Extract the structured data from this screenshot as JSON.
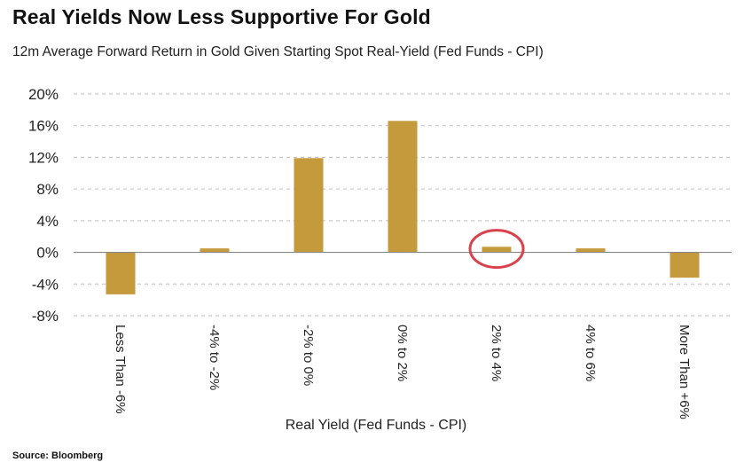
{
  "header": {
    "title": "Real Yields Now Less Supportive For Gold",
    "subtitle": "12m Average Forward Return in Gold Given Starting Spot Real-Yield (Fed Funds - CPI)"
  },
  "footer": {
    "source": "Source: Bloomberg"
  },
  "colors": {
    "bar": "#c49a3c",
    "grid": "#bfbfbf",
    "highlight_ring": "#d9424c"
  },
  "chart_data": {
    "type": "bar",
    "categories": [
      "Less Than -6%",
      "-4% to -2%",
      "-2% to 0%",
      "0% to 2%",
      "2% to 4%",
      "4% to 6%",
      "More Than +6%"
    ],
    "values": [
      -5.3,
      0.5,
      11.9,
      16.6,
      0.7,
      0.5,
      -3.2
    ],
    "xlabel": "Real Yield (Fed Funds - CPI)",
    "ylabel": "",
    "ylim": [
      -8,
      20
    ],
    "yticks": [
      20,
      16,
      12,
      8,
      4,
      0,
      -4,
      -8
    ],
    "ytick_labels": [
      "20%",
      "16%",
      "12%",
      "8%",
      "4%",
      "0%",
      "-4%",
      "-8%"
    ],
    "grid": true,
    "highlighted_category": "2% to 4%"
  }
}
